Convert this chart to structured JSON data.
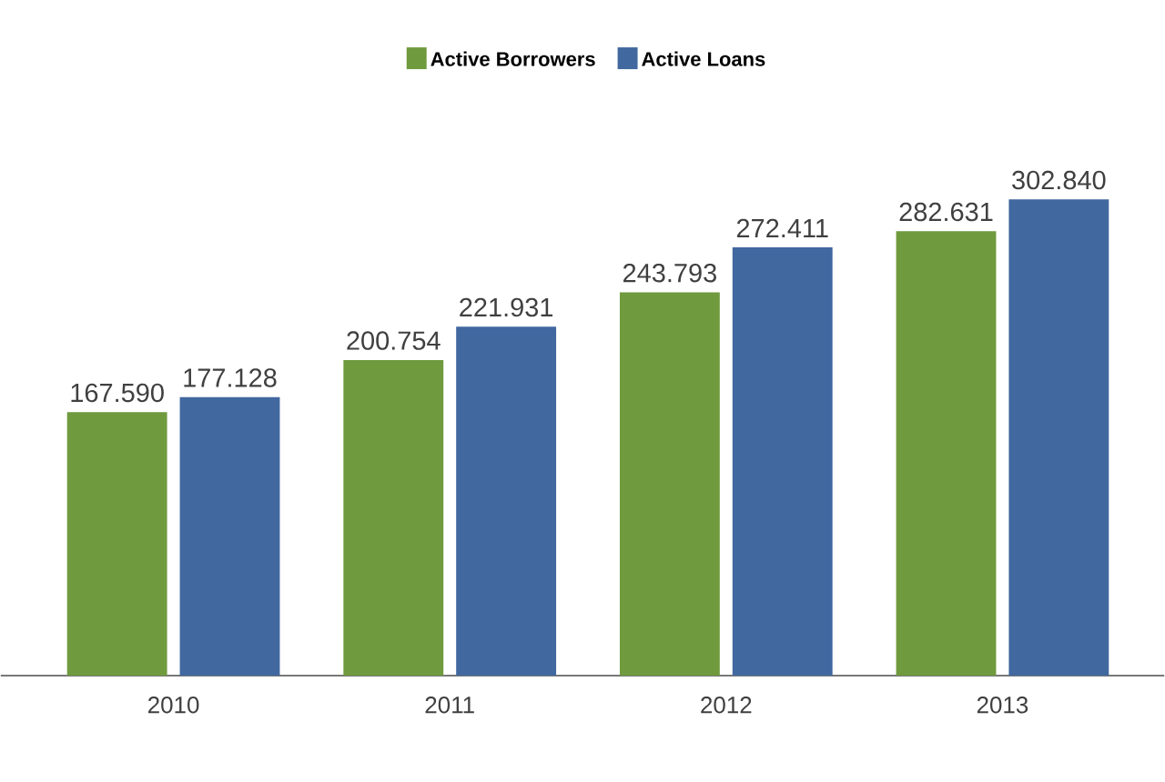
{
  "chart_data": {
    "type": "bar",
    "categories": [
      "2010",
      "2011",
      "2012",
      "2013"
    ],
    "series": [
      {
        "name": "Active Borrowers",
        "color": "#6f9a3e",
        "values": [
          167590,
          200754,
          243793,
          282631
        ],
        "value_labels": [
          "167.590",
          "200.754",
          "243.793",
          "282.631"
        ]
      },
      {
        "name": "Active Loans",
        "color": "#41689f",
        "values": [
          177128,
          221931,
          272411,
          302840
        ],
        "value_labels": [
          "177.128",
          "221.931",
          "272.411",
          "302.840"
        ]
      }
    ],
    "legend": "top"
  }
}
